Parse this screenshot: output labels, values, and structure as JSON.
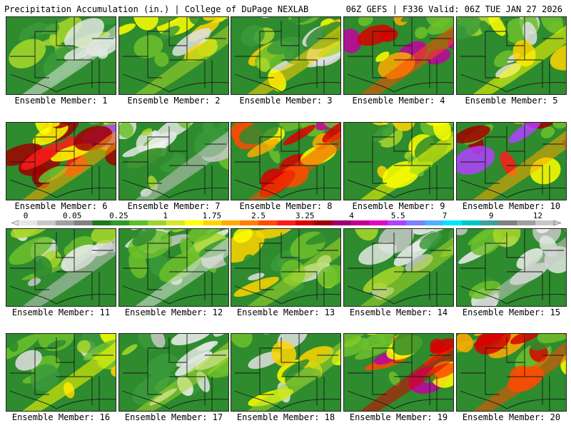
{
  "header": {
    "title_left": "Precipitation Accumulation (in.) | College of DuPage NEXLAB",
    "title_right": "06Z GEFS | F336 Valid: 06Z TUE JAN 27 2026"
  },
  "colorbar": {
    "labels": [
      "0",
      "0.05",
      "0.25",
      "1",
      "1.75",
      "2.5",
      "3.25",
      "4",
      "5.5",
      "7",
      "9",
      "12"
    ],
    "colors": [
      "#e6e6e6",
      "#c8c8c8",
      "#a0a0a0",
      "#828282",
      "#1e7a1e",
      "#2f9a2f",
      "#5fbd28",
      "#9bd42a",
      "#d6e82a",
      "#ffff00",
      "#ffd400",
      "#ffaa00",
      "#ff7f00",
      "#ff4a00",
      "#ff1a1a",
      "#d80000",
      "#a00000",
      "#9b006e",
      "#c20090",
      "#e600c8",
      "#b040ff",
      "#7f7fff",
      "#4fb0ff",
      "#00e5ff",
      "#00c8c8",
      "#40a0a0",
      "#808080",
      "#a0a0a0",
      "#c8c8c8"
    ]
  },
  "members": [
    {
      "label": "Ensemble Member: 1",
      "pattern": "light"
    },
    {
      "label": "Ensemble Member: 2",
      "pattern": "moderate"
    },
    {
      "label": "Ensemble Member: 3",
      "pattern": "moderate"
    },
    {
      "label": "Ensemble Member: 4",
      "pattern": "heavy"
    },
    {
      "label": "Ensemble Member: 5",
      "pattern": "moderate"
    },
    {
      "label": "Ensemble Member: 6",
      "pattern": "very-heavy"
    },
    {
      "label": "Ensemble Member: 7",
      "pattern": "light"
    },
    {
      "label": "Ensemble Member: 8",
      "pattern": "heavy"
    },
    {
      "label": "Ensemble Member: 9",
      "pattern": "moderate"
    },
    {
      "label": "Ensemble Member: 10",
      "pattern": "very-heavy"
    },
    {
      "label": "Ensemble Member: 11",
      "pattern": "light"
    },
    {
      "label": "Ensemble Member: 12",
      "pattern": "light"
    },
    {
      "label": "Ensemble Member: 13",
      "pattern": "moderate"
    },
    {
      "label": "Ensemble Member: 14",
      "pattern": "light"
    },
    {
      "label": "Ensemble Member: 15",
      "pattern": "light"
    },
    {
      "label": "Ensemble Member: 16",
      "pattern": "moderate"
    },
    {
      "label": "Ensemble Member: 17",
      "pattern": "light"
    },
    {
      "label": "Ensemble Member: 18",
      "pattern": "moderate"
    },
    {
      "label": "Ensemble Member: 19",
      "pattern": "heavy"
    },
    {
      "label": "Ensemble Member: 20",
      "pattern": "heavy"
    }
  ]
}
